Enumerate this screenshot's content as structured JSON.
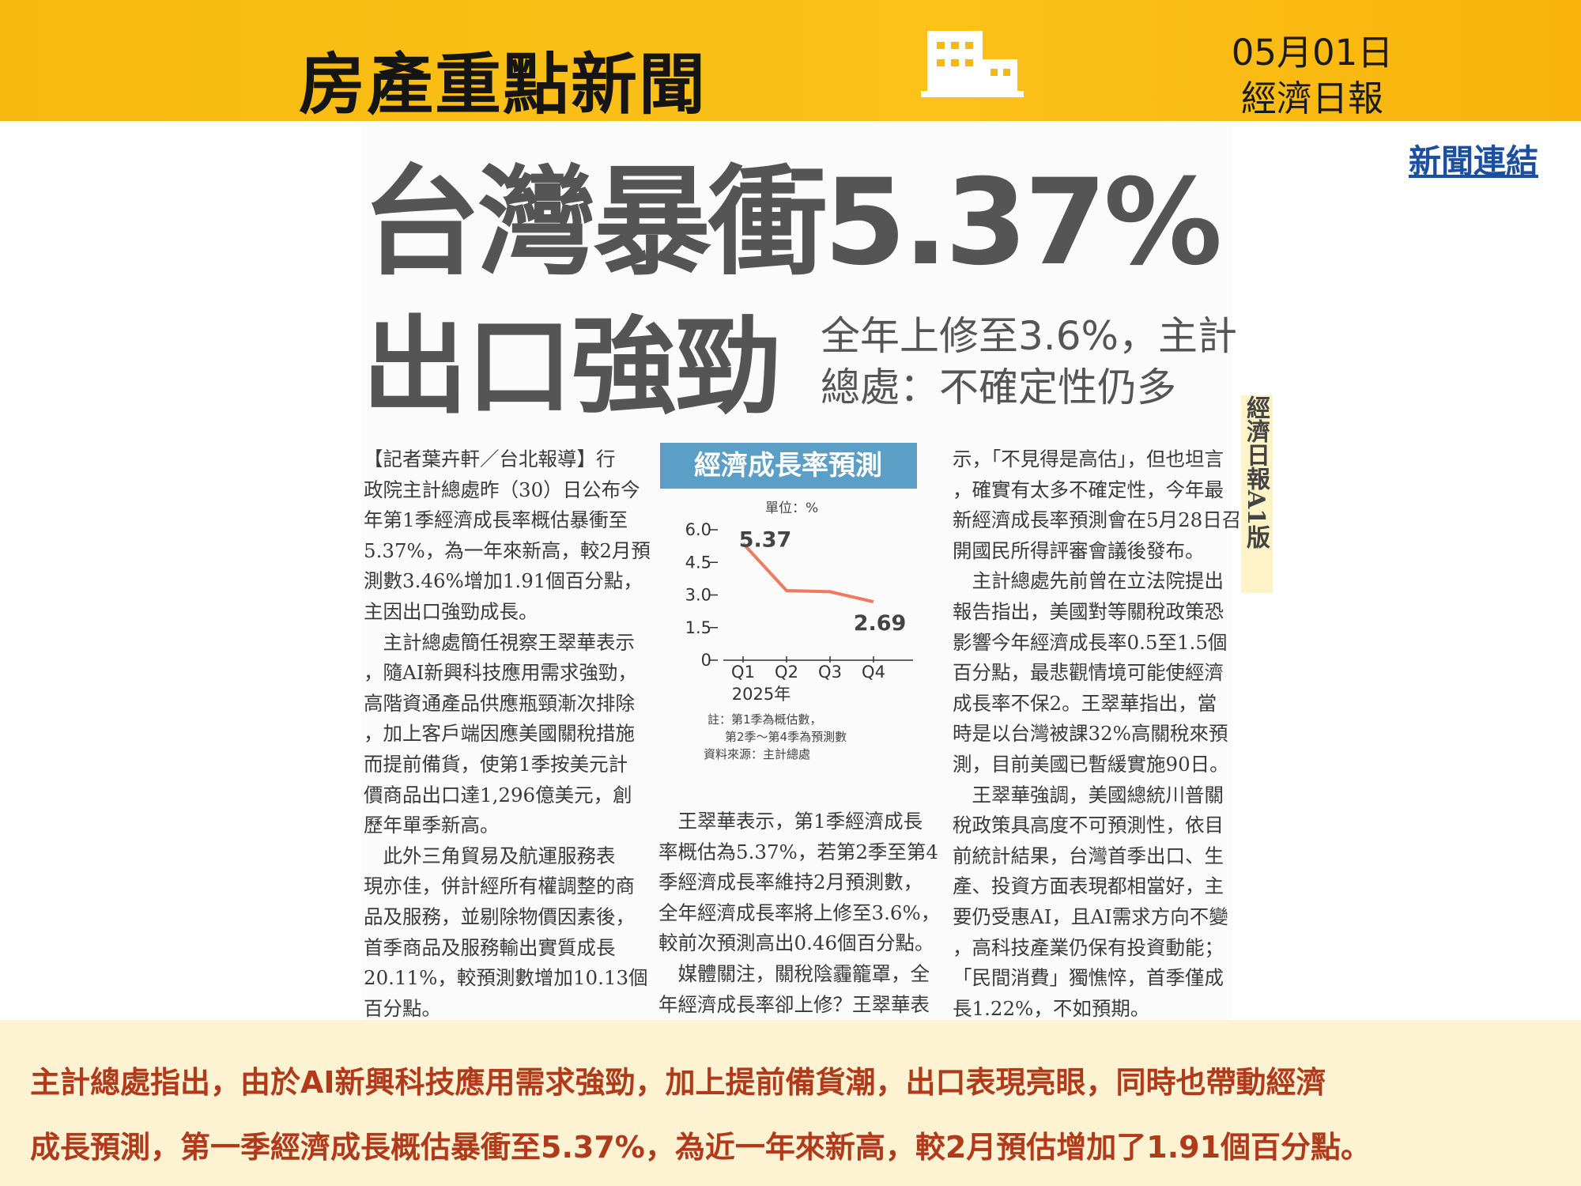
{
  "header": {
    "title": "房產重點新聞",
    "date": "05月01日",
    "source": "經濟日報"
  },
  "link": "新聞連結",
  "article": {
    "headline": "台灣暴衝5.37%",
    "subheadline": "出口強勁",
    "deck": [
      "全年上修至3.6%，主計",
      "總處：不確定性仍多"
    ],
    "edition": "經濟日報A1版",
    "columns": [
      [
        "【記者葉卉軒／台北報導】行",
        "政院主計總處昨（30）日公布今",
        "年第1季經濟成長率概估暴衝至",
        "5.37%，為一年來新高，較2月預",
        "測數3.46%增加1.91個百分點，",
        "主因出口強勁成長。",
        "　主計總處簡任視察王翠華表示",
        "，隨AI新興科技應用需求強勁，",
        "高階資通產品供應瓶頸漸次排除",
        "，加上客戶端因應美國關稅措施",
        "而提前備貨，使第1季按美元計",
        "價商品出口達1,296億美元，創",
        "歷年單季新高。",
        "　此外三角貿易及航運服務表",
        "現亦佳，併計經所有權調整的商",
        "品及服務，並剔除物價因素後，",
        "首季商品及服務輸出實質成長",
        "20.11%，較預測數增加10.13個",
        "百分點。"
      ],
      [
        "　王翠華表示，第1季經濟成長",
        "率概估為5.37%，若第2季至第4",
        "季經濟成長率維持2月預測數，",
        "全年經濟成長率將上修至3.6%，",
        "較前次預測高出0.46個百分點。",
        "　媒體關注，關稅陰霾籠罩，全",
        "年經濟成長率卻上修？王翠華表"
      ],
      [
        "示，「不見得是高估」，但也坦言",
        "，確實有太多不確定性，今年最",
        "新經濟成長率預測會在5月28日召",
        "開國民所得評審會議後發布。",
        "　主計總處先前曾在立法院提出",
        "報告指出，美國對等關稅政策恐",
        "影響今年經濟成長率0.5至1.5個",
        "百分點，最悲觀情境可能使經濟",
        "成長率不保2。王翠華指出，當",
        "時是以台灣被課32%高關稅來預",
        "測，目前美國已暫緩實施90日。",
        "　王翠華強調，美國總統川普關",
        "稅政策具高度不可預測性，依目",
        "前統計結果，台灣首季出口、生",
        "產、投資方面表現都相當好，主",
        "要仍受惠AI，且AI需求方向不變",
        "，高科技產業仍保有投資動能；",
        "「民間消費」獨憔悴，首季僅成",
        "長1.22%，不如預期。"
      ]
    ],
    "chart": {
      "type": "line",
      "title": "經濟成長率預測",
      "unit": "單位：%",
      "categories": [
        "Q1",
        "Q2",
        "Q3",
        "Q4"
      ],
      "x_label": "2025年",
      "values": [
        5.37,
        3.2,
        3.15,
        2.69
      ],
      "color": "#f07a5e",
      "ylim": [
        0,
        6.0
      ],
      "yticks": [
        0,
        1.5,
        {
          "value": 3,
          "label": "3.0"
        },
        4.5,
        {
          "value": 6,
          "label": "6.0"
        }
      ],
      "notes": [
        "註：第1季為概估數，",
        "第2季～第4季為預測數",
        "資料來源：主計總處"
      ]
    }
  },
  "summary": [
    "主計總處指出，由於AI新興科技應用需求強勁，加上提前備貨潮，出口表現亮眼，同時也帶動經濟",
    "成長預測，第一季經濟成長概估暴衝至5.37%，為近一年來新高，較2月預估增加了1.91個百分點。"
  ]
}
